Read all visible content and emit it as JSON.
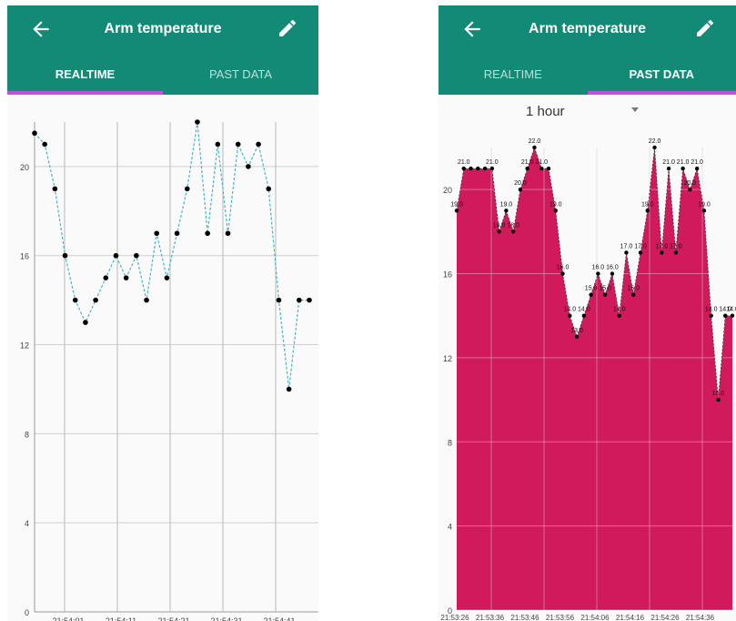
{
  "left_screen": {
    "appbar": {
      "title": "Arm temperature",
      "back_icon": "arrow-left-icon",
      "edit_icon": "pencil-icon"
    },
    "tabs": [
      {
        "label": "REALTIME",
        "active": true
      },
      {
        "label": "PAST DATA",
        "active": false
      }
    ]
  },
  "right_screen": {
    "appbar": {
      "title": "Arm temperature",
      "back_icon": "arrow-left-icon",
      "edit_icon": "pencil-icon"
    },
    "tabs": [
      {
        "label": "REALTIME",
        "active": false
      },
      {
        "label": "PAST DATA",
        "active": true
      }
    ],
    "range_selector": {
      "value": "1 hour"
    }
  },
  "colors": {
    "appbar": "#138a76",
    "tab_indicator": "#c050e0",
    "line": "#44b6c7",
    "area_fill": "#d11a5c"
  },
  "chart_data": [
    {
      "type": "line",
      "ylim": [
        0,
        22
      ],
      "yticks": [
        0,
        4,
        8,
        12,
        16,
        20
      ],
      "xtick_labels": [
        "21:54:01",
        "21:54:11",
        "21:54:21",
        "21:54:31",
        "21:54:41"
      ],
      "values": [
        21.5,
        21,
        19,
        16,
        14,
        13,
        14,
        15,
        16,
        15,
        16,
        14,
        17,
        15,
        17,
        19,
        22,
        17,
        21,
        17,
        21,
        20,
        21,
        19,
        14,
        10,
        14,
        14
      ],
      "grid": true,
      "line_style": "dashed"
    },
    {
      "type": "area",
      "ylim": [
        0,
        22
      ],
      "yticks": [
        0,
        4,
        8,
        12,
        16,
        20
      ],
      "xtick_labels": [
        "21:53:26",
        "21:53:36",
        "21:53:46",
        "21:53:56",
        "21:54:06",
        "21:54:16",
        "21:54:26",
        "21:54:36"
      ],
      "values": [
        19,
        21,
        21,
        21,
        21,
        21,
        18,
        19,
        18,
        20,
        21,
        22,
        21,
        21,
        19,
        16,
        14,
        13,
        14,
        15,
        16,
        15,
        16,
        14,
        17,
        15,
        17,
        19,
        22,
        17,
        21,
        17,
        21,
        20,
        21,
        19,
        14,
        10,
        14,
        14
      ],
      "point_labels": [
        "19.0",
        "21.0",
        "",
        "",
        "",
        "21.0",
        "18.0",
        "19.0",
        "18.0",
        "20.0",
        "21.0",
        "22.0",
        "21.0",
        "",
        "19.0",
        "16.0",
        "14.0",
        "13.0",
        "14.0",
        "15.0",
        "16.0",
        "15.0",
        "16.0",
        "14.0",
        "17.0",
        "15.0",
        "17.0",
        "19.0",
        "22.0",
        "17.0",
        "21.0",
        "17.0",
        "21.0",
        "20.0",
        "21.0",
        "19.0",
        "14.0",
        "10.0",
        "14.0",
        "14.0"
      ],
      "grid": true
    }
  ]
}
